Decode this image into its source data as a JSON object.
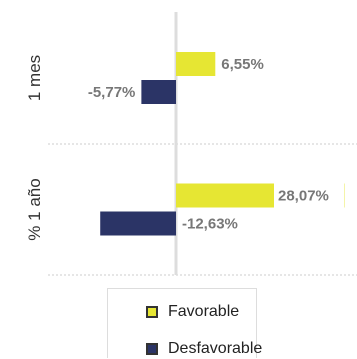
{
  "chart_data": {
    "type": "bar",
    "orientation": "horizontal",
    "categories": [
      "1 mes",
      "% 1 año"
    ],
    "series": [
      {
        "name": "Favorable",
        "color": "#e6e633",
        "values": [
          6.55,
          28.07
        ],
        "labels": [
          "6,55%",
          "28,07%"
        ]
      },
      {
        "name": "Desfavorable",
        "color": "#2b3466",
        "values": [
          -5.77,
          -12.63
        ],
        "labels": [
          "-5,77%",
          "-12,63%"
        ]
      }
    ],
    "grid": true,
    "legend_position": "bottom"
  }
}
